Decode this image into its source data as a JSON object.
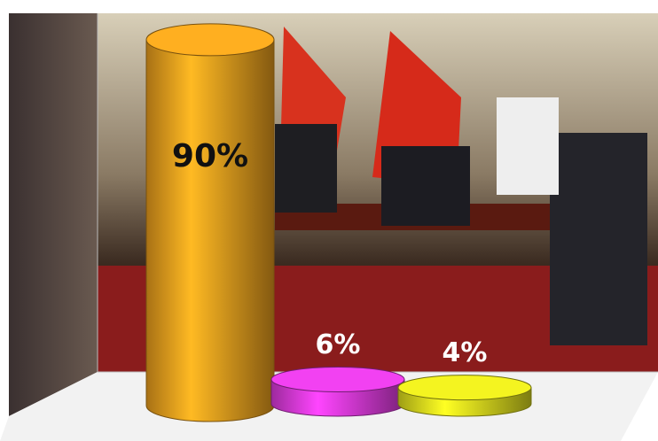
{
  "chart_data": {
    "type": "cylinder",
    "categories": [
      null,
      null,
      null
    ],
    "values": [
      90,
      6,
      4
    ],
    "value_labels": [
      "90%",
      "6%",
      "4%"
    ],
    "colors": [
      "#f0a21e",
      "#e03ce0",
      "#e2e21e"
    ]
  }
}
